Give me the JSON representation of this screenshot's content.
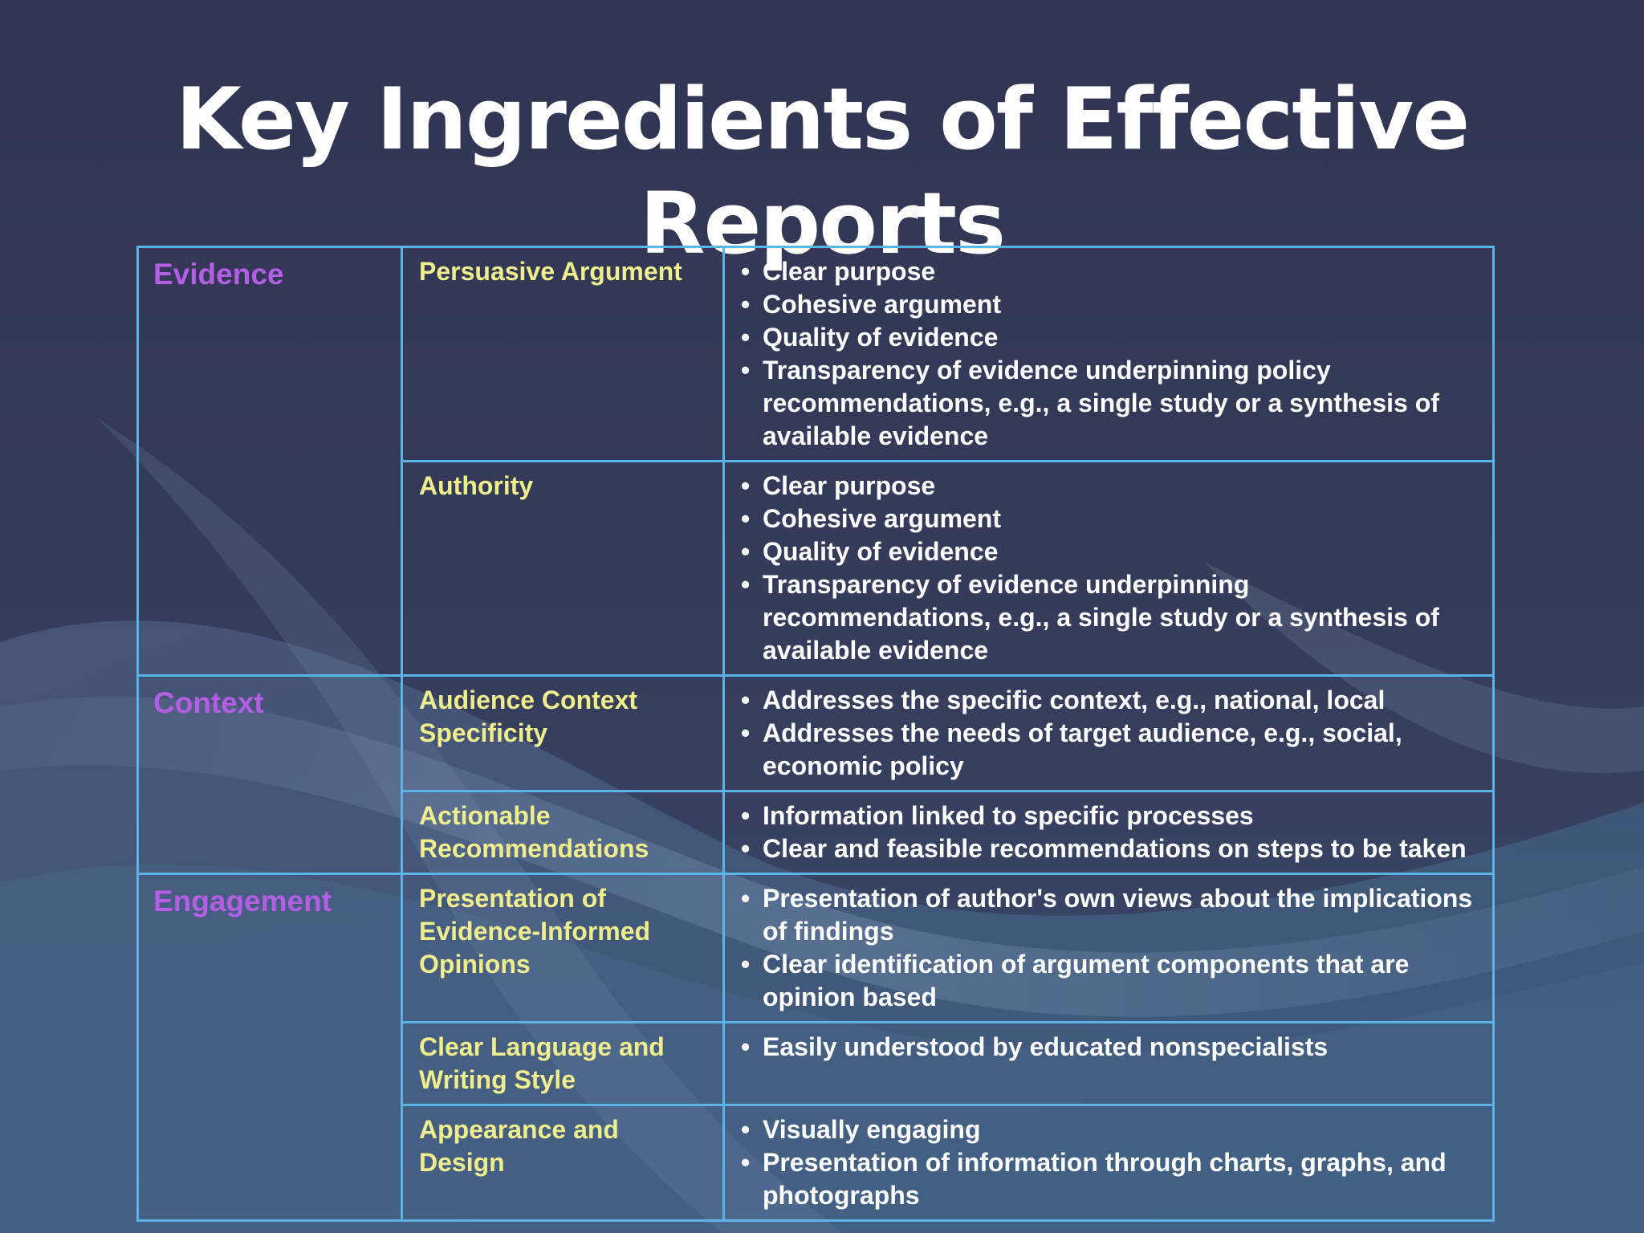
{
  "title": "Key Ingredients of Effective Reports",
  "colors": {
    "background": "#333a57",
    "border": "#5ab4e6",
    "category": "#b45ee6",
    "subcategory": "#f0ee8c",
    "text": "#ffffff"
  },
  "categories": [
    {
      "name": "Evidence",
      "rows": [
        {
          "sub": "Persuasive Argument",
          "bullets": [
            "Clear purpose",
            "Cohesive argument",
            "Quality of evidence",
            "Transparency of evidence underpinning policy recommendations, e.g., a single study or a synthesis of available evidence"
          ]
        },
        {
          "sub": "Authority",
          "bullets": [
            "Clear purpose",
            "Cohesive argument",
            "Quality of evidence",
            "Transparency of evidence underpinning recommendations, e.g., a single study or a synthesis of available evidence"
          ]
        }
      ]
    },
    {
      "name": "Context",
      "rows": [
        {
          "sub": "Audience Context Specificity",
          "bullets": [
            "Addresses the specific context, e.g., national, local",
            "Addresses the needs of target audience, e.g., social, economic policy"
          ]
        },
        {
          "sub": "Actionable Recommendations",
          "bullets": [
            "Information linked to specific processes",
            "Clear and feasible recommendations on steps to be taken"
          ]
        }
      ]
    },
    {
      "name": "Engagement",
      "rows": [
        {
          "sub": "Presentation of Evidence-Informed Opinions",
          "bullets": [
            "Presentation of author's own views about the implications of findings",
            "Clear identification of argument components that are opinion based"
          ]
        },
        {
          "sub": "Clear Language and Writing Style",
          "bullets": [
            "Easily understood by educated nonspecialists"
          ]
        },
        {
          "sub": "Appearance and Design",
          "bullets": [
            "Visually engaging",
            "Presentation of information through charts, graphs, and photographs"
          ]
        }
      ]
    }
  ]
}
